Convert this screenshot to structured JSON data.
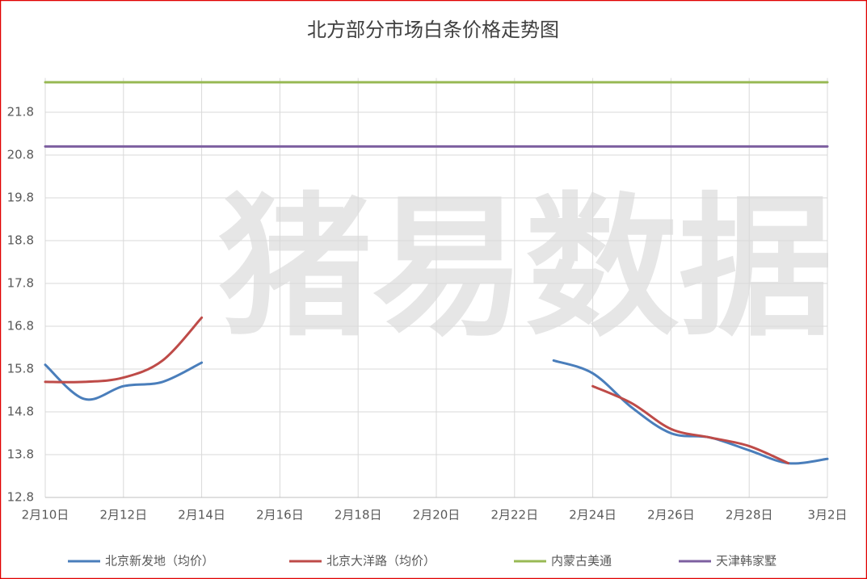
{
  "chart_data": {
    "type": "line",
    "title": "北方部分市场白条价格走势图",
    "watermark": "猪易数据",
    "categories": [
      "2月10日",
      null,
      "2月12日",
      null,
      "2月14日",
      null,
      "2月16日",
      null,
      "2月18日",
      null,
      "2月20日",
      null,
      "2月22日",
      null,
      "2月24日",
      null,
      "2月26日",
      null,
      "2月28日",
      null,
      "3月2日"
    ],
    "series": [
      {
        "name": "北京新发地（均价）",
        "color": "#4a7ebb",
        "values": [
          15.9,
          15.1,
          15.4,
          15.5,
          15.95,
          null,
          null,
          null,
          null,
          null,
          null,
          null,
          null,
          16.0,
          15.7,
          14.9,
          14.3,
          14.2,
          13.9,
          13.6,
          13.7
        ]
      },
      {
        "name": "北京大洋路（均价）",
        "color": "#be4b48",
        "values": [
          15.5,
          15.5,
          15.6,
          16.0,
          17.0,
          null,
          null,
          null,
          null,
          null,
          null,
          null,
          null,
          null,
          15.4,
          15.0,
          14.4,
          14.2,
          14.0,
          13.6,
          null
        ]
      },
      {
        "name": "内蒙古美通",
        "color": "#98b954",
        "values": [
          22.5,
          22.5,
          22.5,
          22.5,
          22.5,
          22.5,
          22.5,
          22.5,
          22.5,
          22.5,
          22.5,
          22.5,
          22.5,
          22.5,
          22.5,
          22.5,
          22.5,
          22.5,
          22.5,
          22.5,
          22.5
        ]
      },
      {
        "name": "天津韩家墅",
        "color": "#7d5fa0",
        "values": [
          21.0,
          21.0,
          21.0,
          21.0,
          21.0,
          21.0,
          21.0,
          21.0,
          21.0,
          21.0,
          21.0,
          21.0,
          21.0,
          21.0,
          21.0,
          21.0,
          21.0,
          21.0,
          21.0,
          21.0,
          21.0
        ]
      }
    ],
    "ylim": [
      12.8,
      22.6
    ],
    "yticks": [
      12.8,
      13.8,
      14.8,
      15.8,
      16.8,
      17.8,
      18.8,
      19.8,
      20.8,
      21.8
    ],
    "grid": true,
    "legend": "bottom"
  }
}
